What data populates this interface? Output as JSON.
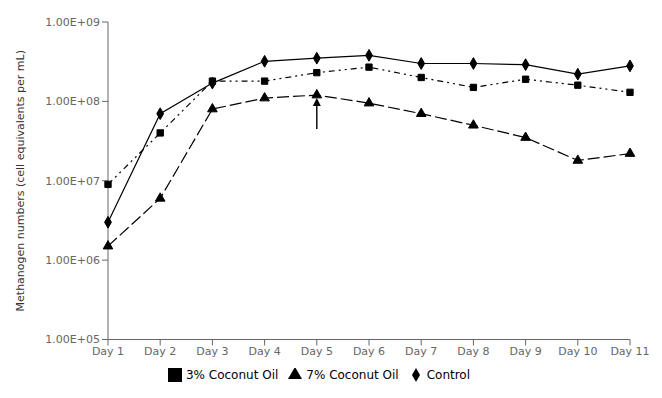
{
  "chart_data": {
    "type": "line",
    "categories": [
      "Day 1",
      "Day 2",
      "Day 3",
      "Day 4",
      "Day 5",
      "Day 6",
      "Day 7",
      "Day 8",
      "Day 9",
      "Day 10",
      "Day 11"
    ],
    "series": [
      {
        "name": "Control",
        "color": "#000000",
        "marker": "diamond",
        "line_style": "solid",
        "values": [
          3000000,
          70000000,
          170000000,
          320000000,
          350000000,
          380000000,
          300000000,
          300000000,
          290000000,
          220000000,
          280000000
        ]
      },
      {
        "name": "3% Coconut Oil",
        "color": "#000000",
        "marker": "square",
        "line_style": "dashdotdot",
        "values": [
          9000000,
          40000000,
          180000000,
          180000000,
          230000000,
          270000000,
          200000000,
          150000000,
          190000000,
          160000000,
          130000000
        ]
      },
      {
        "name": "7% Coconut Oil",
        "color": "#000000",
        "marker": "triangle",
        "line_style": "dashed",
        "values": [
          1500000,
          6000000,
          80000000,
          110000000,
          120000000,
          95000000,
          70000000,
          50000000,
          35000000,
          18000000,
          22000000
        ]
      }
    ],
    "ylabel": "Methanogen numbers (cell equivalents per mL)",
    "ylim": [
      100000,
      1000000000
    ],
    "yticks": [
      {
        "value": 100000,
        "label": "1.00E+05"
      },
      {
        "value": 1000000,
        "label": "1.00E+06"
      },
      {
        "value": 10000000,
        "label": "1.00E+07"
      },
      {
        "value": 100000000,
        "label": "1.00E+08"
      },
      {
        "value": 1000000000,
        "label": "1.00E+09"
      }
    ],
    "log": "y",
    "grid": false,
    "legend": "bottom",
    "annotations": [
      {
        "x": "Day 5",
        "y_start": 45000000,
        "y_end": 110000000
      }
    ]
  }
}
